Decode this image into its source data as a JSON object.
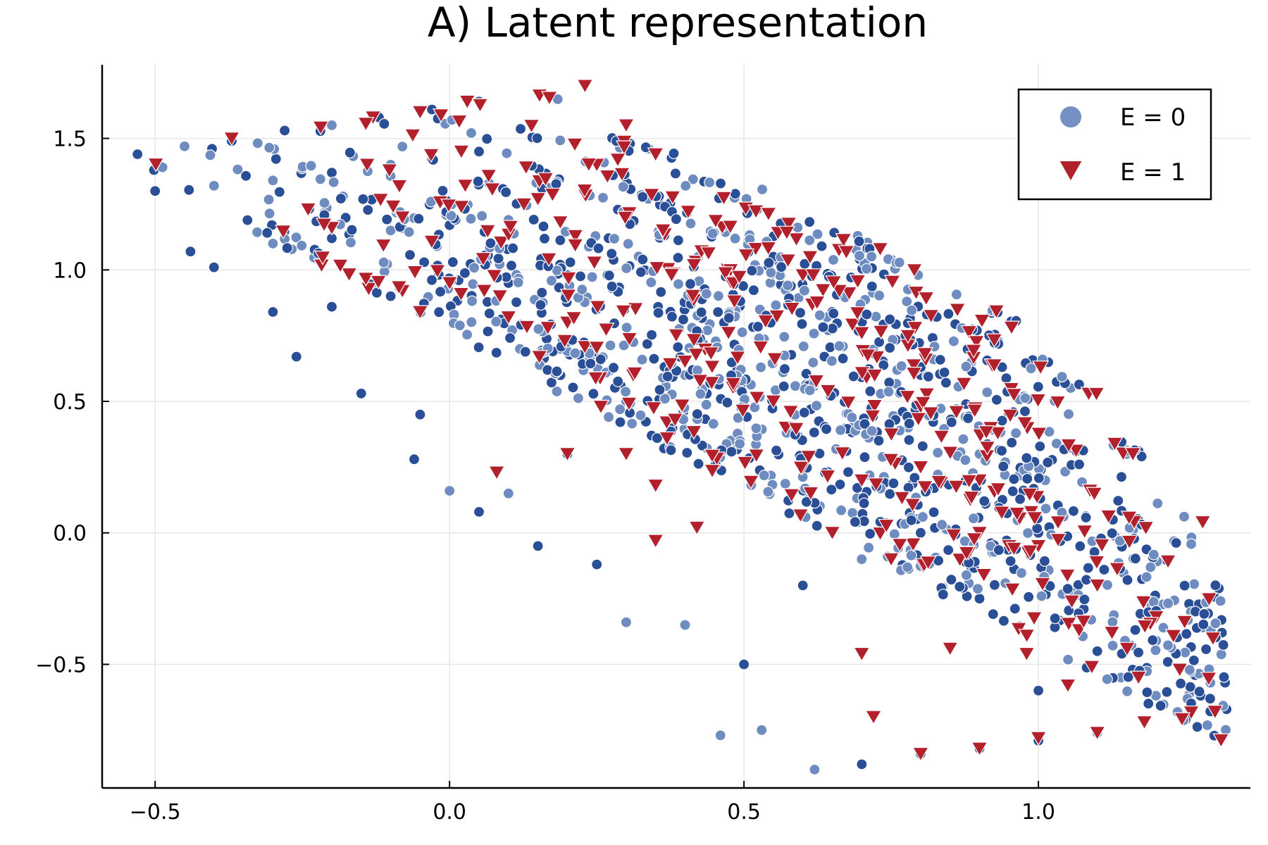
{
  "chart_data": {
    "type": "scatter",
    "title": "A) Latent representation",
    "xlabel": "",
    "ylabel": "",
    "xlim": [
      -0.59,
      1.36
    ],
    "ylim": [
      -0.97,
      1.78
    ],
    "grid": true,
    "legend_position": "top-right",
    "x_ticks": [
      -0.5,
      0.0,
      0.5,
      1.0
    ],
    "x_tick_labels": [
      "−0.5",
      "0.0",
      "0.5",
      "1.0"
    ],
    "y_ticks": [
      -0.5,
      0.0,
      0.5,
      1.0,
      1.5
    ],
    "y_tick_labels": [
      "−0.5",
      "0.0",
      "0.5",
      "1.0",
      "1.5"
    ],
    "series": [
      {
        "name": "E = 0",
        "marker": "circle",
        "color": "#2a4f96",
        "color_light": "#6f8cc0",
        "stroke": "#ffffff",
        "n_points": 1250,
        "approx_points": [
          [
            -0.53,
            1.44
          ],
          [
            -0.45,
            1.47
          ],
          [
            -0.37,
            1.49
          ],
          [
            -0.28,
            1.53
          ],
          [
            -0.2,
            1.55
          ],
          [
            -0.12,
            1.58
          ],
          [
            -0.03,
            1.61
          ],
          [
            0.05,
            1.64
          ],
          [
            -0.5,
            1.3
          ],
          [
            -0.4,
            1.32
          ],
          [
            -0.3,
            1.34
          ],
          [
            -0.2,
            1.37
          ],
          [
            -0.1,
            1.4
          ],
          [
            -0.03,
            1.42
          ],
          [
            0.05,
            1.45
          ],
          [
            -0.44,
            1.07
          ],
          [
            -0.4,
            1.01
          ],
          [
            -0.3,
            1.1
          ],
          [
            -0.2,
            1.12
          ],
          [
            -0.1,
            1.15
          ],
          [
            0.0,
            1.17
          ],
          [
            0.1,
            1.19
          ],
          [
            -0.3,
            0.84
          ],
          [
            -0.2,
            0.86
          ],
          [
            -0.1,
            0.9
          ],
          [
            0.0,
            0.93
          ],
          [
            0.1,
            0.95
          ],
          [
            0.2,
            0.98
          ],
          [
            -0.26,
            0.67
          ],
          [
            -0.15,
            0.53
          ],
          [
            -0.05,
            0.45
          ],
          [
            -0.06,
            0.28
          ],
          [
            0.0,
            0.16
          ],
          [
            0.05,
            0.08
          ],
          [
            0.1,
            0.15
          ],
          [
            0.2,
            0.3
          ],
          [
            0.3,
            0.5
          ],
          [
            0.4,
            0.6
          ],
          [
            0.15,
            -0.05
          ],
          [
            0.25,
            -0.12
          ],
          [
            0.3,
            -0.34
          ],
          [
            0.4,
            -0.35
          ],
          [
            0.46,
            -0.77
          ],
          [
            0.5,
            -0.5
          ],
          [
            0.6,
            -0.2
          ],
          [
            0.7,
            -0.1
          ],
          [
            0.8,
            0.0
          ],
          [
            0.9,
            -0.25
          ],
          [
            0.53,
            -0.75
          ],
          [
            0.62,
            -0.9
          ],
          [
            0.7,
            -0.88
          ],
          [
            0.8,
            -0.84
          ],
          [
            0.9,
            -0.82
          ],
          [
            1.0,
            -0.79
          ],
          [
            1.1,
            -0.76
          ],
          [
            1.25,
            -0.71
          ],
          [
            1.0,
            -0.6
          ],
          [
            1.1,
            -0.45
          ],
          [
            1.2,
            -0.41
          ],
          [
            0.6,
            0.95
          ],
          [
            0.7,
            0.8
          ],
          [
            0.8,
            0.6
          ],
          [
            0.9,
            0.3
          ],
          [
            1.0,
            0.0
          ]
        ]
      },
      {
        "name": "E = 1",
        "marker": "triangle-down",
        "color": "#b2202c",
        "stroke": "#ffffff",
        "n_points": 380,
        "approx_points": [
          [
            -0.37,
            1.5
          ],
          [
            -0.13,
            1.58
          ],
          [
            -0.05,
            1.6
          ],
          [
            0.03,
            1.64
          ],
          [
            -0.14,
            1.4
          ],
          [
            0.02,
            1.45
          ],
          [
            0.13,
            1.39
          ],
          [
            0.25,
            1.4
          ],
          [
            -0.2,
            1.16
          ],
          [
            -0.08,
            1.2
          ],
          [
            0.02,
            1.24
          ],
          [
            0.15,
            1.27
          ],
          [
            0.3,
            1.55
          ],
          [
            0.35,
            1.44
          ],
          [
            0.23,
            1.7
          ],
          [
            -0.08,
            0.92
          ],
          [
            -0.05,
            0.84
          ],
          [
            0.0,
            0.95
          ],
          [
            0.1,
            0.82
          ],
          [
            0.2,
            0.8
          ],
          [
            0.08,
            0.23
          ],
          [
            0.2,
            0.3
          ],
          [
            0.3,
            0.3
          ],
          [
            0.35,
            0.18
          ],
          [
            0.35,
            -0.03
          ],
          [
            0.42,
            0.02
          ],
          [
            0.55,
            0.5
          ],
          [
            0.6,
            0.25
          ],
          [
            0.65,
            0.0
          ],
          [
            0.7,
            0.2
          ],
          [
            0.75,
            -0.1
          ],
          [
            0.8,
            0.25
          ],
          [
            0.9,
            0.0
          ],
          [
            0.95,
            -0.05
          ],
          [
            0.52,
            1.08
          ],
          [
            0.6,
            0.98
          ],
          [
            0.7,
            0.76
          ],
          [
            0.8,
            0.48
          ],
          [
            0.9,
            0.2
          ],
          [
            1.0,
            -0.05
          ],
          [
            1.1,
            -0.2
          ],
          [
            1.2,
            -0.32
          ],
          [
            1.05,
            -0.58
          ],
          [
            1.17,
            -0.55
          ],
          [
            0.72,
            -0.7
          ],
          [
            0.8,
            -0.84
          ],
          [
            0.9,
            -0.82
          ],
          [
            1.0,
            -0.78
          ],
          [
            1.1,
            -0.76
          ],
          [
            1.18,
            -0.72
          ],
          [
            1.24,
            -0.52
          ],
          [
            1.3,
            -0.68
          ],
          [
            0.7,
            -0.46
          ],
          [
            0.85,
            -0.44
          ],
          [
            0.98,
            -0.46
          ]
        ]
      }
    ]
  }
}
